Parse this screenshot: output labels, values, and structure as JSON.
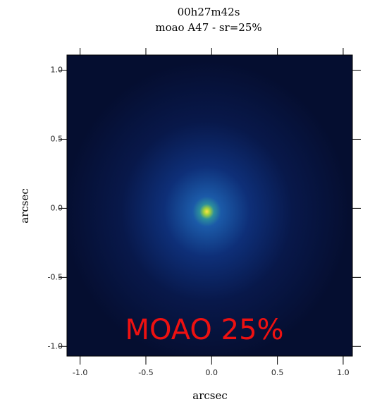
{
  "chart_data": {
    "type": "image",
    "title": "00h27m42s",
    "subtitle": "moao A47 - sr=25%",
    "xlabel": "arcsec",
    "ylabel": "arcsec",
    "annotation": "MOAO 25%",
    "xlim": [
      -1.1,
      1.07
    ],
    "ylim": [
      -1.07,
      1.11
    ],
    "xticks": [
      {
        "value": -1,
        "label": "-1.0"
      },
      {
        "value": -0.5,
        "label": "-0.5"
      },
      {
        "value": 0,
        "label": "0.0"
      },
      {
        "value": 0.5,
        "label": "0.5"
      },
      {
        "value": 1,
        "label": "1.0"
      }
    ],
    "yticks": [
      {
        "value": -1,
        "label": "-1.0"
      },
      {
        "value": -0.5,
        "label": "-0.5"
      },
      {
        "value": 0,
        "label": "0.0"
      },
      {
        "value": 0.5,
        "label": "0.5"
      },
      {
        "value": 1,
        "label": "1.0"
      }
    ]
  }
}
